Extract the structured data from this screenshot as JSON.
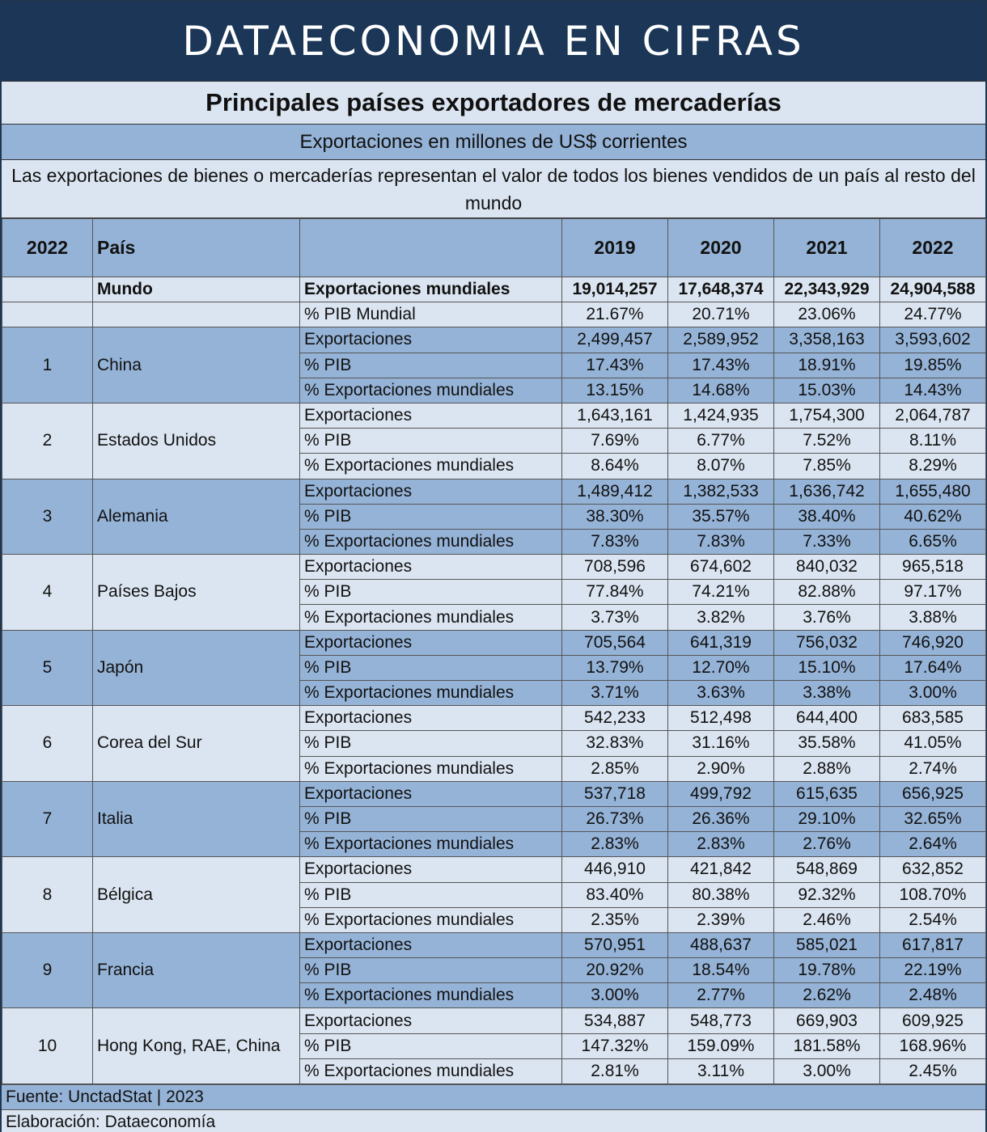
{
  "banner": "DATAECONOMIA EN CIFRAS",
  "chart_data": {
    "type": "table",
    "title": "Principales países exportadores de mercaderías",
    "subtitle": "Exportaciones en millones de US$ corrientes",
    "description": "Las exportaciones de bienes o mercaderías representan el valor de todos los bienes vendidos de un país al resto del mundo",
    "header": {
      "rank": "2022",
      "country": "País",
      "metric": "",
      "years": [
        "2019",
        "2020",
        "2021",
        "2022"
      ]
    },
    "world": {
      "name": "Mundo",
      "rows": [
        {
          "label": "Exportaciones mundiales",
          "values": [
            "19,014,257",
            "17,648,374",
            "22,343,929",
            "24,904,588"
          ]
        },
        {
          "label": "% PIB Mundial",
          "values": [
            "21.67%",
            "20.71%",
            "23.06%",
            "24.77%"
          ]
        }
      ]
    },
    "countries": [
      {
        "rank": "1",
        "name": "China",
        "rows": [
          {
            "label": "Exportaciones",
            "values": [
              "2,499,457",
              "2,589,952",
              "3,358,163",
              "3,593,602"
            ]
          },
          {
            "label": "% PIB",
            "values": [
              "17.43%",
              "17.43%",
              "18.91%",
              "19.85%"
            ]
          },
          {
            "label": "% Exportaciones mundiales",
            "values": [
              "13.15%",
              "14.68%",
              "15.03%",
              "14.43%"
            ]
          }
        ]
      },
      {
        "rank": "2",
        "name": "Estados Unidos",
        "rows": [
          {
            "label": "Exportaciones",
            "values": [
              "1,643,161",
              "1,424,935",
              "1,754,300",
              "2,064,787"
            ]
          },
          {
            "label": "% PIB",
            "values": [
              "7.69%",
              "6.77%",
              "7.52%",
              "8.11%"
            ]
          },
          {
            "label": "% Exportaciones mundiales",
            "values": [
              "8.64%",
              "8.07%",
              "7.85%",
              "8.29%"
            ]
          }
        ]
      },
      {
        "rank": "3",
        "name": "Alemania",
        "rows": [
          {
            "label": "Exportaciones",
            "values": [
              "1,489,412",
              "1,382,533",
              "1,636,742",
              "1,655,480"
            ]
          },
          {
            "label": "% PIB",
            "values": [
              "38.30%",
              "35.57%",
              "38.40%",
              "40.62%"
            ]
          },
          {
            "label": "% Exportaciones mundiales",
            "values": [
              "7.83%",
              "7.83%",
              "7.33%",
              "6.65%"
            ]
          }
        ]
      },
      {
        "rank": "4",
        "name": "Países Bajos",
        "rows": [
          {
            "label": "Exportaciones",
            "values": [
              "708,596",
              "674,602",
              "840,032",
              "965,518"
            ]
          },
          {
            "label": "% PIB",
            "values": [
              "77.84%",
              "74.21%",
              "82.88%",
              "97.17%"
            ]
          },
          {
            "label": "% Exportaciones mundiales",
            "values": [
              "3.73%",
              "3.82%",
              "3.76%",
              "3.88%"
            ]
          }
        ]
      },
      {
        "rank": "5",
        "name": "Japón",
        "rows": [
          {
            "label": "Exportaciones",
            "values": [
              "705,564",
              "641,319",
              "756,032",
              "746,920"
            ]
          },
          {
            "label": "% PIB",
            "values": [
              "13.79%",
              "12.70%",
              "15.10%",
              "17.64%"
            ]
          },
          {
            "label": "% Exportaciones mundiales",
            "values": [
              "3.71%",
              "3.63%",
              "3.38%",
              "3.00%"
            ]
          }
        ]
      },
      {
        "rank": "6",
        "name": "Corea del Sur",
        "rows": [
          {
            "label": "Exportaciones",
            "values": [
              "542,233",
              "512,498",
              "644,400",
              "683,585"
            ]
          },
          {
            "label": "% PIB",
            "values": [
              "32.83%",
              "31.16%",
              "35.58%",
              "41.05%"
            ]
          },
          {
            "label": "% Exportaciones mundiales",
            "values": [
              "2.85%",
              "2.90%",
              "2.88%",
              "2.74%"
            ]
          }
        ]
      },
      {
        "rank": "7",
        "name": "Italia",
        "rows": [
          {
            "label": "Exportaciones",
            "values": [
              "537,718",
              "499,792",
              "615,635",
              "656,925"
            ]
          },
          {
            "label": "% PIB",
            "values": [
              "26.73%",
              "26.36%",
              "29.10%",
              "32.65%"
            ]
          },
          {
            "label": "% Exportaciones mundiales",
            "values": [
              "2.83%",
              "2.83%",
              "2.76%",
              "2.64%"
            ]
          }
        ]
      },
      {
        "rank": "8",
        "name": "Bélgica",
        "rows": [
          {
            "label": "Exportaciones",
            "values": [
              "446,910",
              "421,842",
              "548,869",
              "632,852"
            ]
          },
          {
            "label": "% PIB",
            "values": [
              "83.40%",
              "80.38%",
              "92.32%",
              "108.70%"
            ]
          },
          {
            "label": "% Exportaciones mundiales",
            "values": [
              "2.35%",
              "2.39%",
              "2.46%",
              "2.54%"
            ]
          }
        ]
      },
      {
        "rank": "9",
        "name": "Francia",
        "rows": [
          {
            "label": "Exportaciones",
            "values": [
              "570,951",
              "488,637",
              "585,021",
              "617,817"
            ]
          },
          {
            "label": "% PIB",
            "values": [
              "20.92%",
              "18.54%",
              "19.78%",
              "22.19%"
            ]
          },
          {
            "label": "% Exportaciones mundiales",
            "values": [
              "3.00%",
              "2.77%",
              "2.62%",
              "2.48%"
            ]
          }
        ]
      },
      {
        "rank": "10",
        "name": "Hong Kong, RAE, China",
        "rows": [
          {
            "label": "Exportaciones",
            "values": [
              "534,887",
              "548,773",
              "669,903",
              "609,925"
            ]
          },
          {
            "label": "% PIB",
            "values": [
              "147.32%",
              "159.09%",
              "181.58%",
              "168.96%"
            ]
          },
          {
            "label": "% Exportaciones mundiales",
            "values": [
              "2.81%",
              "3.11%",
              "3.00%",
              "2.45%"
            ]
          }
        ]
      }
    ]
  },
  "footer": {
    "source": "Fuente: UnctadStat | 2023",
    "credit": "Elaboración: Dataeconomía"
  },
  "colors": {
    "banner_bg": "#1b3656",
    "band_dark": "#95b3d7",
    "band_light": "#dbe5f1"
  }
}
